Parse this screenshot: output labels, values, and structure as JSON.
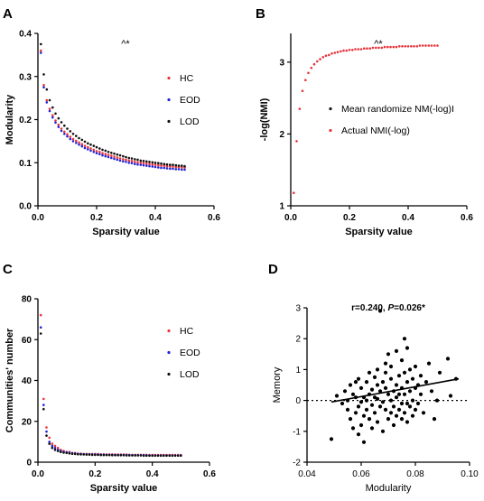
{
  "figure": {
    "panels": [
      "A",
      "B",
      "C",
      "D"
    ]
  },
  "chart_data": [
    {
      "id": "A",
      "type": "scatter",
      "panel_label": "A",
      "xlabel": "Sparsity value",
      "ylabel": "Modularity",
      "xlim": [
        0,
        0.6
      ],
      "ylim": [
        0,
        0.4
      ],
      "xticks": [
        "0.0",
        "0.2",
        "0.4",
        "0.6"
      ],
      "yticks": [
        "0.0",
        "0.1",
        "0.2",
        "0.3",
        "0.4"
      ],
      "annotation": "^*",
      "legend_position": "right",
      "grid": false,
      "colors": {
        "HC": "#e8343c",
        "EOD": "#2424d6",
        "LOD": "#111111"
      },
      "x": [
        0.01,
        0.02,
        0.03,
        0.04,
        0.05,
        0.06,
        0.07,
        0.08,
        0.09,
        0.1,
        0.11,
        0.12,
        0.13,
        0.14,
        0.15,
        0.16,
        0.17,
        0.18,
        0.19,
        0.2,
        0.21,
        0.22,
        0.23,
        0.24,
        0.25,
        0.26,
        0.27,
        0.28,
        0.29,
        0.3,
        0.31,
        0.32,
        0.33,
        0.34,
        0.35,
        0.36,
        0.37,
        0.38,
        0.39,
        0.4,
        0.41,
        0.42,
        0.43,
        0.44,
        0.45,
        0.46,
        0.47,
        0.48,
        0.49,
        0.5
      ],
      "series": [
        {
          "name": "HC",
          "values": [
            0.36,
            0.28,
            0.245,
            0.225,
            0.21,
            0.198,
            0.188,
            0.179,
            0.172,
            0.166,
            0.16,
            0.155,
            0.151,
            0.147,
            0.143,
            0.139,
            0.136,
            0.133,
            0.13,
            0.127,
            0.125,
            0.122,
            0.12,
            0.118,
            0.116,
            0.114,
            0.112,
            0.11,
            0.108,
            0.107,
            0.105,
            0.104,
            0.102,
            0.101,
            0.1,
            0.099,
            0.098,
            0.097,
            0.096,
            0.095,
            0.094,
            0.093,
            0.093,
            0.092,
            0.091,
            0.091,
            0.09,
            0.09,
            0.089,
            0.089
          ]
        },
        {
          "name": "EOD",
          "values": [
            0.355,
            0.275,
            0.24,
            0.22,
            0.205,
            0.193,
            0.183,
            0.174,
            0.167,
            0.161,
            0.155,
            0.15,
            0.146,
            0.142,
            0.138,
            0.134,
            0.131,
            0.128,
            0.125,
            0.122,
            0.12,
            0.117,
            0.115,
            0.113,
            0.111,
            0.109,
            0.107,
            0.105,
            0.103,
            0.102,
            0.1,
            0.099,
            0.097,
            0.096,
            0.095,
            0.094,
            0.093,
            0.092,
            0.091,
            0.09,
            0.089,
            0.088,
            0.088,
            0.087,
            0.086,
            0.086,
            0.085,
            0.085,
            0.084,
            0.084
          ]
        },
        {
          "name": "LOD",
          "values": [
            0.375,
            0.305,
            0.27,
            0.245,
            0.228,
            0.214,
            0.203,
            0.194,
            0.186,
            0.179,
            0.173,
            0.167,
            0.162,
            0.157,
            0.153,
            0.149,
            0.145,
            0.142,
            0.139,
            0.136,
            0.133,
            0.13,
            0.128,
            0.125,
            0.123,
            0.121,
            0.119,
            0.117,
            0.115,
            0.113,
            0.111,
            0.11,
            0.108,
            0.107,
            0.105,
            0.104,
            0.103,
            0.102,
            0.101,
            0.1,
            0.099,
            0.098,
            0.097,
            0.096,
            0.095,
            0.095,
            0.094,
            0.093,
            0.093,
            0.092
          ]
        }
      ]
    },
    {
      "id": "B",
      "type": "scatter",
      "panel_label": "B",
      "xlabel": "Sparsity value",
      "ylabel": "-log(NMI)",
      "xlim": [
        0,
        0.6
      ],
      "ylim": [
        1,
        3.4
      ],
      "xticks": [
        "0.0",
        "0.2",
        "0.4",
        "0.6"
      ],
      "yticks": [
        "1",
        "2",
        "3"
      ],
      "annotation": "^*",
      "legend_position": "right",
      "grid": false,
      "colors": {
        "Mean randomize NM(-log)I": "#111111",
        "Actual NMI(-log)": "#e8343c"
      },
      "x": [
        0.01,
        0.02,
        0.03,
        0.04,
        0.05,
        0.06,
        0.07,
        0.08,
        0.09,
        0.1,
        0.11,
        0.12,
        0.13,
        0.14,
        0.15,
        0.16,
        0.17,
        0.18,
        0.19,
        0.2,
        0.21,
        0.22,
        0.23,
        0.24,
        0.25,
        0.26,
        0.27,
        0.28,
        0.29,
        0.3,
        0.31,
        0.32,
        0.33,
        0.34,
        0.35,
        0.36,
        0.37,
        0.38,
        0.39,
        0.4,
        0.41,
        0.42,
        0.43,
        0.44,
        0.45,
        0.46,
        0.47,
        0.48,
        0.49,
        0.5
      ],
      "series": [
        {
          "name": "Mean randomize NM(-log)I",
          "values": [
            3.25,
            3.25,
            3.25,
            3.25,
            3.25,
            3.25,
            3.25,
            3.25,
            3.25,
            3.25,
            3.25,
            3.25,
            3.25,
            3.25,
            3.25,
            3.25,
            3.25,
            3.25,
            3.25,
            3.25,
            3.25,
            3.25,
            3.25,
            3.25,
            3.25,
            3.25,
            3.25,
            3.25,
            3.25,
            3.25,
            3.25,
            3.25,
            3.25,
            3.25,
            3.25,
            3.25,
            3.25,
            3.25,
            3.25,
            3.25,
            3.25,
            3.25,
            3.25,
            3.25,
            3.25,
            3.25,
            3.25,
            3.25,
            3.25,
            3.25
          ],
          "visible_points": 0
        },
        {
          "name": "Actual NMI(-log)",
          "values": [
            1.18,
            1.9,
            2.35,
            2.6,
            2.75,
            2.85,
            2.92,
            2.97,
            3.01,
            3.04,
            3.07,
            3.09,
            3.1,
            3.12,
            3.13,
            3.14,
            3.15,
            3.16,
            3.16,
            3.17,
            3.17,
            3.18,
            3.18,
            3.18,
            3.19,
            3.19,
            3.19,
            3.2,
            3.2,
            3.2,
            3.2,
            3.21,
            3.21,
            3.21,
            3.21,
            3.21,
            3.22,
            3.22,
            3.22,
            3.22,
            3.22,
            3.22,
            3.22,
            3.23,
            3.23,
            3.23,
            3.23,
            3.23,
            3.23,
            3.23
          ]
        }
      ]
    },
    {
      "id": "C",
      "type": "scatter",
      "panel_label": "C",
      "xlabel": "Sparsity value",
      "ylabel": "Communities' number",
      "xlim": [
        0,
        0.6
      ],
      "ylim": [
        0,
        80
      ],
      "xticks": [
        "0.0",
        "0.2",
        "0.4",
        "0.6"
      ],
      "yticks": [
        "0",
        "20",
        "40",
        "60",
        "80"
      ],
      "legend_position": "right",
      "grid": false,
      "colors": {
        "HC": "#e8343c",
        "EOD": "#2424d6",
        "LOD": "#111111"
      },
      "x": [
        0.01,
        0.02,
        0.03,
        0.04,
        0.05,
        0.06,
        0.07,
        0.08,
        0.09,
        0.1,
        0.11,
        0.12,
        0.13,
        0.14,
        0.15,
        0.16,
        0.17,
        0.18,
        0.19,
        0.2,
        0.21,
        0.22,
        0.23,
        0.24,
        0.25,
        0.26,
        0.27,
        0.28,
        0.29,
        0.3,
        0.31,
        0.32,
        0.33,
        0.34,
        0.35,
        0.36,
        0.37,
        0.38,
        0.39,
        0.4,
        0.41,
        0.42,
        0.43,
        0.44,
        0.45,
        0.46,
        0.47,
        0.48,
        0.49,
        0.5
      ],
      "series": [
        {
          "name": "HC",
          "values": [
            72,
            31,
            17,
            12,
            9,
            8,
            7,
            6,
            5.5,
            5,
            5,
            4.5,
            4.5,
            4.2,
            4.2,
            4,
            4,
            4,
            4,
            4,
            4,
            3.8,
            3.8,
            3.8,
            3.8,
            3.8,
            3.7,
            3.7,
            3.7,
            3.7,
            3.7,
            3.6,
            3.6,
            3.6,
            3.6,
            3.6,
            3.6,
            3.6,
            3.5,
            3.5,
            3.5,
            3.5,
            3.5,
            3.5,
            3.5,
            3.5,
            3.5,
            3.5,
            3.5,
            3.5
          ]
        },
        {
          "name": "EOD",
          "values": [
            66,
            28,
            15,
            10,
            8,
            7,
            6,
            5.5,
            5,
            4.8,
            4.6,
            4.4,
            4.2,
            4.1,
            4,
            3.9,
            3.9,
            3.8,
            3.8,
            3.8,
            3.7,
            3.7,
            3.7,
            3.6,
            3.6,
            3.6,
            3.6,
            3.5,
            3.5,
            3.5,
            3.5,
            3.5,
            3.4,
            3.4,
            3.4,
            3.4,
            3.4,
            3.4,
            3.3,
            3.3,
            3.3,
            3.3,
            3.3,
            3.3,
            3.3,
            3.3,
            3.3,
            3.3,
            3.3,
            3.3
          ]
        },
        {
          "name": "LOD",
          "values": [
            63,
            26,
            13,
            9,
            7,
            6,
            5.5,
            5,
            4.7,
            4.5,
            4.3,
            4.1,
            4,
            3.9,
            3.8,
            3.8,
            3.7,
            3.7,
            3.6,
            3.6,
            3.6,
            3.5,
            3.5,
            3.5,
            3.5,
            3.4,
            3.4,
            3.4,
            3.4,
            3.4,
            3.3,
            3.3,
            3.3,
            3.3,
            3.3,
            3.3,
            3.2,
            3.2,
            3.2,
            3.2,
            3.2,
            3.2,
            3.2,
            3.2,
            3.2,
            3.2,
            3.2,
            3.2,
            3.2,
            3.2
          ]
        }
      ]
    },
    {
      "id": "D",
      "type": "scatter",
      "panel_label": "D",
      "xlabel": "Modularity",
      "ylabel": "Memory",
      "xlim": [
        0.04,
        0.1
      ],
      "ylim": [
        -2,
        3
      ],
      "xticks": [
        "0.04",
        "0.06",
        "0.08",
        "0.10"
      ],
      "yticks": [
        "-2",
        "-1",
        "0",
        "1",
        "2",
        "3"
      ],
      "annotation_prefix": "r=0.240, ",
      "annotation_p": "P",
      "annotation_suffix": "=0.026*",
      "grid": false,
      "zero_line": "dotted",
      "colors": {
        "points": "#000000",
        "fit": "#000000"
      },
      "regression_line": {
        "x": [
          0.049,
          0.096
        ],
        "y": [
          -0.05,
          0.7
        ]
      },
      "points": [
        [
          0.051,
          0.15
        ],
        [
          0.049,
          -1.25
        ],
        [
          0.053,
          -0.1
        ],
        [
          0.054,
          0.3
        ],
        [
          0.055,
          0.0
        ],
        [
          0.055,
          -0.3
        ],
        [
          0.056,
          0.5
        ],
        [
          0.056,
          -0.6
        ],
        [
          0.057,
          0.2
        ],
        [
          0.057,
          -0.9
        ],
        [
          0.058,
          0.6
        ],
        [
          0.058,
          0.1
        ],
        [
          0.058,
          -0.4
        ],
        [
          0.059,
          0.7
        ],
        [
          0.059,
          -0.2
        ],
        [
          0.059,
          -1.1
        ],
        [
          0.06,
          0.4
        ],
        [
          0.06,
          -0.05
        ],
        [
          0.06,
          -0.8
        ],
        [
          0.061,
          0.1
        ],
        [
          0.061,
          -0.5
        ],
        [
          0.061,
          -1.35
        ],
        [
          0.062,
          0.6
        ],
        [
          0.062,
          0.0
        ],
        [
          0.062,
          -0.3
        ],
        [
          0.063,
          0.9
        ],
        [
          0.063,
          0.2
        ],
        [
          0.063,
          -0.6
        ],
        [
          0.064,
          0.35
        ],
        [
          0.064,
          -0.15
        ],
        [
          0.064,
          -0.9
        ],
        [
          0.065,
          0.75
        ],
        [
          0.065,
          0.1
        ],
        [
          0.065,
          -0.4
        ],
        [
          0.066,
          0.5
        ],
        [
          0.066,
          0.05
        ],
        [
          0.066,
          -0.7
        ],
        [
          0.066,
          1.0
        ],
        [
          0.067,
          0.3
        ],
        [
          0.067,
          -0.2
        ],
        [
          0.067,
          2.9
        ],
        [
          0.068,
          0.6
        ],
        [
          0.068,
          -0.05
        ],
        [
          0.068,
          -1.0
        ],
        [
          0.069,
          1.2
        ],
        [
          0.069,
          0.4
        ],
        [
          0.069,
          -0.3
        ],
        [
          0.069,
          0.9
        ],
        [
          0.07,
          0.2
        ],
        [
          0.07,
          -0.6
        ],
        [
          0.07,
          1.5
        ],
        [
          0.071,
          0.7
        ],
        [
          0.071,
          0.0
        ],
        [
          0.071,
          -0.4
        ],
        [
          0.071,
          1.1
        ],
        [
          0.072,
          0.3
        ],
        [
          0.072,
          -0.2
        ],
        [
          0.072,
          -0.8
        ],
        [
          0.073,
          1.6
        ],
        [
          0.073,
          0.5
        ],
        [
          0.073,
          0.1
        ],
        [
          0.073,
          -0.5
        ],
        [
          0.074,
          0.8
        ],
        [
          0.074,
          0.2
        ],
        [
          0.074,
          -0.3
        ],
        [
          0.075,
          1.3
        ],
        [
          0.075,
          0.4
        ],
        [
          0.075,
          -0.1
        ],
        [
          0.075,
          -0.6
        ],
        [
          0.076,
          2.0
        ],
        [
          0.076,
          0.9
        ],
        [
          0.076,
          0.2
        ],
        [
          0.076,
          -0.4
        ],
        [
          0.077,
          1.7
        ],
        [
          0.077,
          0.6
        ],
        [
          0.077,
          -0.1
        ],
        [
          0.077,
          -0.7
        ],
        [
          0.078,
          1.0
        ],
        [
          0.078,
          0.3
        ],
        [
          0.078,
          -0.2
        ],
        [
          0.079,
          0.7
        ],
        [
          0.079,
          0.0
        ],
        [
          0.079,
          -0.5
        ],
        [
          0.08,
          1.1
        ],
        [
          0.08,
          0.4
        ],
        [
          0.08,
          -0.3
        ],
        [
          0.081,
          0.5
        ],
        [
          0.081,
          -0.1
        ],
        [
          0.082,
          0.8
        ],
        [
          0.082,
          0.2
        ],
        [
          0.083,
          -0.4
        ],
        [
          0.084,
          0.6
        ],
        [
          0.085,
          1.2
        ],
        [
          0.086,
          0.3
        ],
        [
          0.087,
          -0.6
        ],
        [
          0.088,
          0.0
        ],
        [
          0.089,
          0.9
        ],
        [
          0.092,
          1.35
        ],
        [
          0.093,
          0.15
        ],
        [
          0.095,
          0.7
        ]
      ]
    }
  ]
}
